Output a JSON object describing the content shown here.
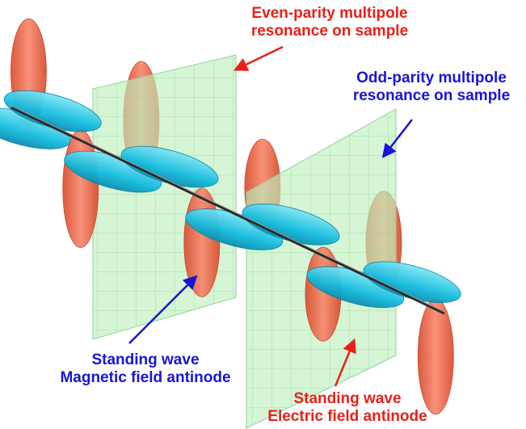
{
  "labels": {
    "even_parity": {
      "line1": "Even-parity multipole",
      "line2": "resonance on sample",
      "color": "#e8201a"
    },
    "odd_parity": {
      "line1": "Odd-parity multipole",
      "line2": "resonance on sample",
      "color": "#1a14d8"
    },
    "magnetic_antinode": {
      "line1": "Standing wave",
      "line2": "Magnetic field antinode",
      "color": "#1a14d8"
    },
    "electric_antinode": {
      "line1": "Standing wave",
      "line2": "Electric field antinode",
      "color": "#e8201a"
    }
  },
  "colors": {
    "electric_field": "#f26a4a",
    "magnetic_field": "#1ec8e6",
    "sample_plane": "#b4ecb4",
    "axis": "#333333"
  }
}
